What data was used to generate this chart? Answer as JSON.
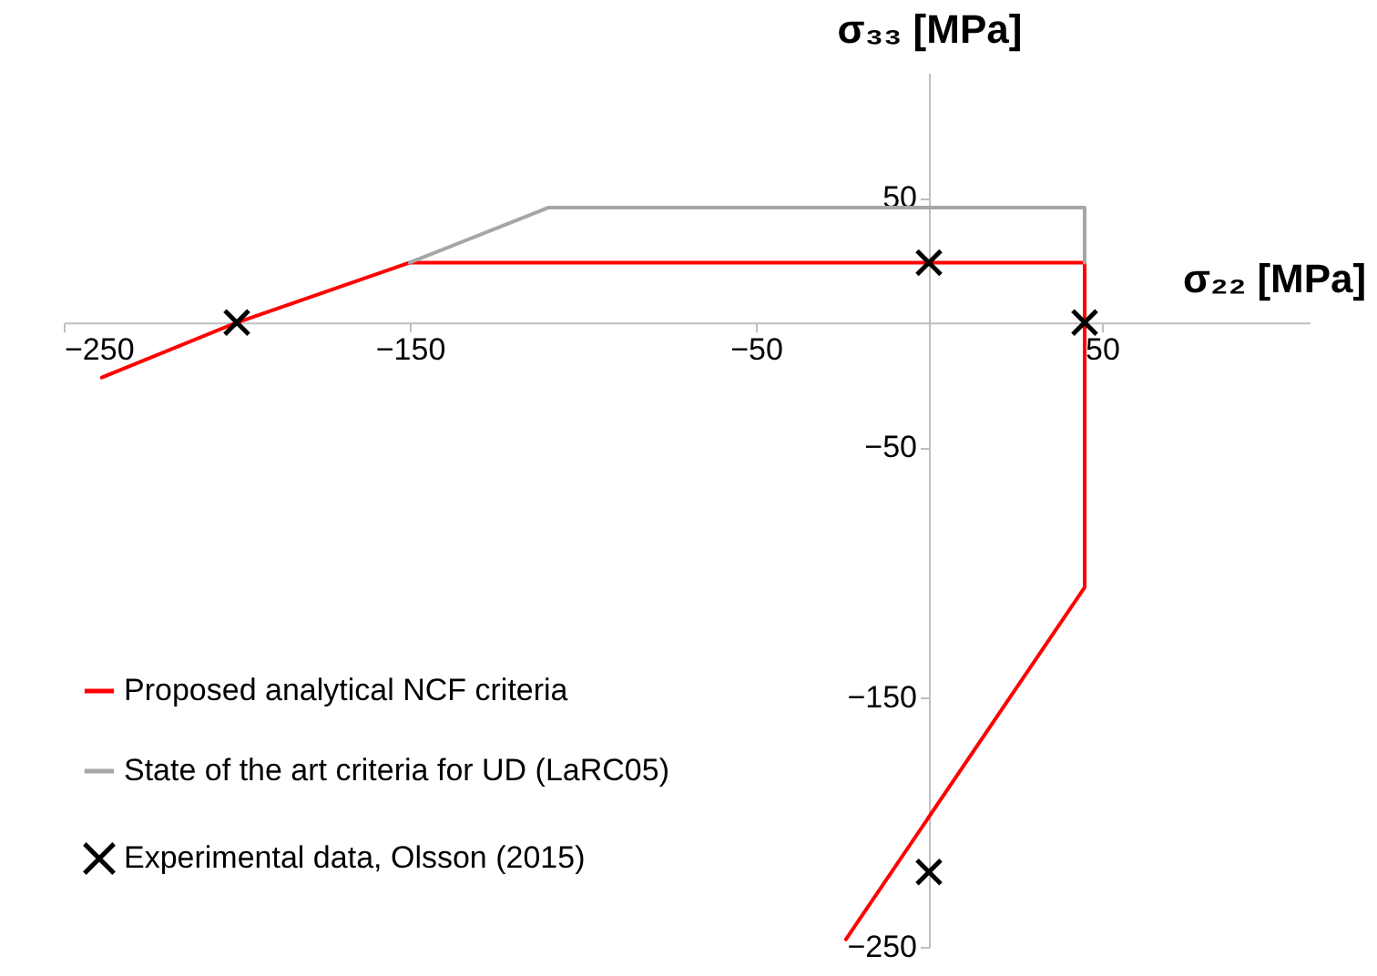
{
  "chart_data": {
    "type": "line",
    "xlabel": "σ₂₂ [MPa]",
    "ylabel": "σ₃₃ [MPa]",
    "xlim": [
      -250,
      110
    ],
    "ylim": [
      -250,
      100
    ],
    "xticks": [
      -250,
      -150,
      -50,
      50
    ],
    "yticks": [
      -250,
      -150,
      -50,
      50
    ],
    "grid": false,
    "legend": "bottom left",
    "series": [
      {
        "name": "Proposed analytical NCF criteria",
        "type": "line",
        "color": "#ff0000",
        "x": [
          -239,
          -200,
          -150,
          45,
          45,
          -24
        ],
        "values": [
          -22,
          0,
          24,
          24,
          -106,
          -247
        ]
      },
      {
        "name": "State of the art criteria for UD (LaRC05)",
        "type": "line",
        "color": "#a6a6a6",
        "x": [
          -150,
          -110,
          45,
          45
        ],
        "values": [
          24,
          46,
          46,
          24
        ]
      },
      {
        "name": "Experimental data, Olsson (2015)",
        "type": "scatter",
        "marker": "cross",
        "color": "#000000",
        "x": [
          -200,
          0,
          45,
          0
        ],
        "values": [
          0,
          24,
          0,
          -220
        ]
      }
    ]
  }
}
